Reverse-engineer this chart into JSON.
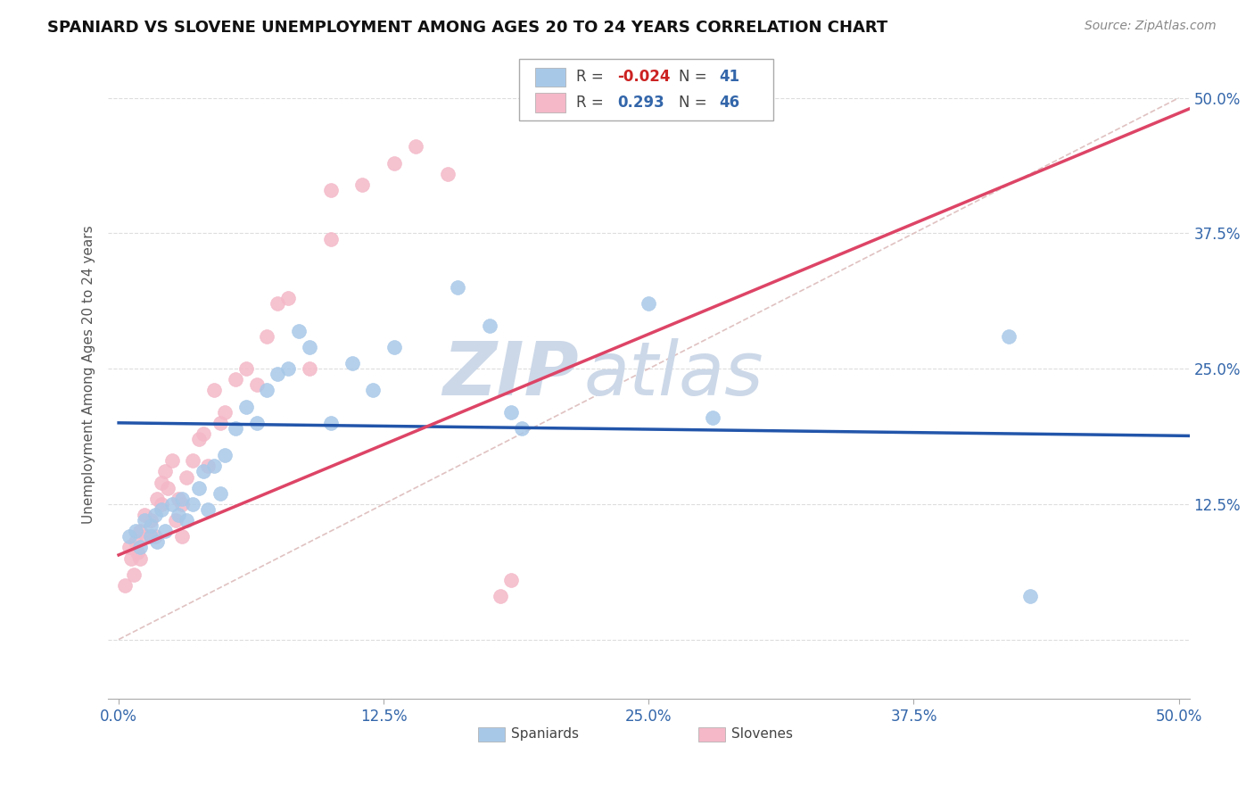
{
  "title": "SPANIARD VS SLOVENE UNEMPLOYMENT AMONG AGES 20 TO 24 YEARS CORRELATION CHART",
  "source_text": "Source: ZipAtlas.com",
  "ylabel": "Unemployment Among Ages 20 to 24 years",
  "xlim": [
    -0.005,
    0.505
  ],
  "ylim": [
    -0.055,
    0.545
  ],
  "xtick_labels": [
    "0.0%",
    "12.5%",
    "25.0%",
    "37.5%",
    "50.0%"
  ],
  "xtick_vals": [
    0.0,
    0.125,
    0.25,
    0.375,
    0.5
  ],
  "ytick_labels": [
    "12.5%",
    "25.0%",
    "37.5%",
    "50.0%"
  ],
  "ytick_vals": [
    0.125,
    0.25,
    0.375,
    0.5
  ],
  "legend_R_blue": "-0.024",
  "legend_N_blue": "41",
  "legend_R_pink": "0.293",
  "legend_N_pink": "46",
  "blue_color": "#a8c8e8",
  "pink_color": "#f4b8c8",
  "blue_line_color": "#2255aa",
  "pink_line_color": "#dd4466",
  "diag_line_color": "#ddbbbb",
  "watermark_color": "#ccd8e8",
  "background_color": "#ffffff",
  "grid_color": "#dddddd",
  "blue_scatter_x": [
    0.005,
    0.008,
    0.01,
    0.012,
    0.015,
    0.015,
    0.017,
    0.018,
    0.02,
    0.022,
    0.025,
    0.028,
    0.03,
    0.032,
    0.035,
    0.038,
    0.04,
    0.042,
    0.045,
    0.048,
    0.05,
    0.055,
    0.06,
    0.065,
    0.07,
    0.075,
    0.08,
    0.085,
    0.09,
    0.1,
    0.11,
    0.12,
    0.13,
    0.16,
    0.175,
    0.185,
    0.19,
    0.25,
    0.28,
    0.42,
    0.43
  ],
  "blue_scatter_y": [
    0.095,
    0.1,
    0.085,
    0.11,
    0.095,
    0.105,
    0.115,
    0.09,
    0.12,
    0.1,
    0.125,
    0.115,
    0.13,
    0.11,
    0.125,
    0.14,
    0.155,
    0.12,
    0.16,
    0.135,
    0.17,
    0.195,
    0.215,
    0.2,
    0.23,
    0.245,
    0.25,
    0.285,
    0.27,
    0.2,
    0.255,
    0.23,
    0.27,
    0.325,
    0.29,
    0.21,
    0.195,
    0.31,
    0.205,
    0.28,
    0.04
  ],
  "pink_scatter_x": [
    0.003,
    0.005,
    0.006,
    0.007,
    0.008,
    0.009,
    0.01,
    0.01,
    0.012,
    0.013,
    0.015,
    0.015,
    0.017,
    0.018,
    0.02,
    0.02,
    0.022,
    0.023,
    0.025,
    0.027,
    0.028,
    0.03,
    0.03,
    0.032,
    0.035,
    0.038,
    0.04,
    0.042,
    0.045,
    0.048,
    0.05,
    0.055,
    0.06,
    0.065,
    0.07,
    0.075,
    0.08,
    0.09,
    0.1,
    0.1,
    0.115,
    0.13,
    0.14,
    0.155,
    0.18,
    0.185
  ],
  "pink_scatter_y": [
    0.05,
    0.085,
    0.075,
    0.06,
    0.09,
    0.08,
    0.1,
    0.075,
    0.115,
    0.095,
    0.11,
    0.095,
    0.095,
    0.13,
    0.145,
    0.125,
    0.155,
    0.14,
    0.165,
    0.11,
    0.13,
    0.095,
    0.125,
    0.15,
    0.165,
    0.185,
    0.19,
    0.16,
    0.23,
    0.2,
    0.21,
    0.24,
    0.25,
    0.235,
    0.28,
    0.31,
    0.315,
    0.25,
    0.37,
    0.415,
    0.42,
    0.44,
    0.455,
    0.43,
    0.04,
    0.055
  ],
  "blue_line_x0": 0.0,
  "blue_line_x1": 0.505,
  "blue_line_y0": 0.2,
  "blue_line_y1": 0.188,
  "pink_line_x0": 0.0,
  "pink_line_x1": 0.505,
  "pink_line_y0": 0.078,
  "pink_line_y1": 0.49
}
